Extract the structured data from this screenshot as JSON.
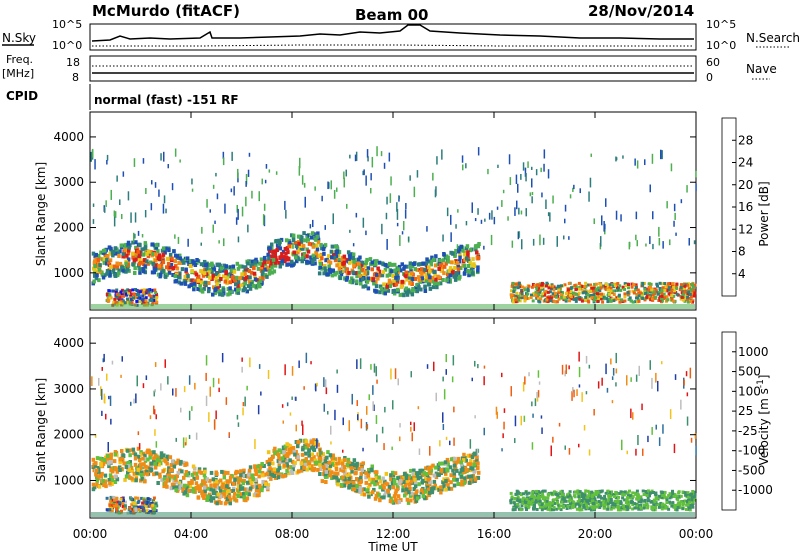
{
  "header": {
    "station": "McMurdo (fitACF)",
    "beam": "Beam 00",
    "date": "28/Nov/2014"
  },
  "top_panels": {
    "nsky_label": "N.Sky",
    "nsearch_label": "N.Search",
    "count_top_label": "10^5",
    "count_bottom_label": "10^0",
    "freq_label": "Freq.",
    "freq_unit": "[MHz]",
    "freq_ticks": [
      "18",
      "8"
    ],
    "nave_label": "Nave",
    "nave_ticks": [
      "60",
      "0"
    ],
    "cpid_label": "CPID",
    "cpid_value": "normal (fast) -151 RF"
  },
  "axes": {
    "ylabel": "Slant Range [km]",
    "xlabel": "Time UT",
    "y_ticks": [
      "1000",
      "2000",
      "3000",
      "4000"
    ],
    "x_ticks": [
      "00:00",
      "04:00",
      "08:00",
      "12:00",
      "16:00",
      "20:00",
      "00:00"
    ]
  },
  "colorbars": {
    "power": {
      "label": "Power [dB]",
      "ticks": [
        "4",
        "8",
        "12",
        "16",
        "20",
        "24",
        "28"
      ],
      "colors": [
        "#0a16f0",
        "#1e50b4",
        "#2e7d7d",
        "#4caf50",
        "#e6c619",
        "#f08c16",
        "#ee5f12",
        "#d81b1b"
      ]
    },
    "velocity": {
      "label": "Velocity [m s",
      "label_sup": "-1",
      "label_end": "]",
      "ticks": [
        "1000",
        "500",
        "100",
        "25",
        "-25",
        "-100",
        "-500",
        "-1000"
      ],
      "colors": [
        "#1f3fa8",
        "#2e6f9e",
        "#3e8f6e",
        "#62c03c",
        "#bdbdbd",
        "#f2c419",
        "#f08c16",
        "#ee5f12",
        "#e01616"
      ]
    }
  },
  "chart_data": [
    {
      "type": "heatmap",
      "title": "Power [dB]",
      "xlabel": "Time UT",
      "ylabel": "Slant Range [km]",
      "xlim": [
        0,
        24
      ],
      "ylim": [
        180,
        4550
      ],
      "features": [
        {
          "x_start": 0.0,
          "x_end": 15.4,
          "range_low": 700,
          "range_high": 1500,
          "power_peak": 28
        },
        {
          "x_start": 16.6,
          "x_end": 24.0,
          "range_low": 300,
          "range_high": 700,
          "power_peak": 24
        }
      ]
    },
    {
      "type": "heatmap",
      "title": "Velocity",
      "xlabel": "Time UT",
      "ylabel": "Slant Range [km]",
      "xlim": [
        0,
        24
      ],
      "ylim": [
        180,
        4550
      ],
      "features": [
        {
          "x_start": 0.0,
          "x_end": 15.4,
          "range_low": 700,
          "range_high": 1700,
          "velocity": -300
        },
        {
          "x_start": 16.6,
          "x_end": 24.0,
          "range_low": 300,
          "range_high": 700,
          "velocity": 200
        }
      ]
    }
  ]
}
